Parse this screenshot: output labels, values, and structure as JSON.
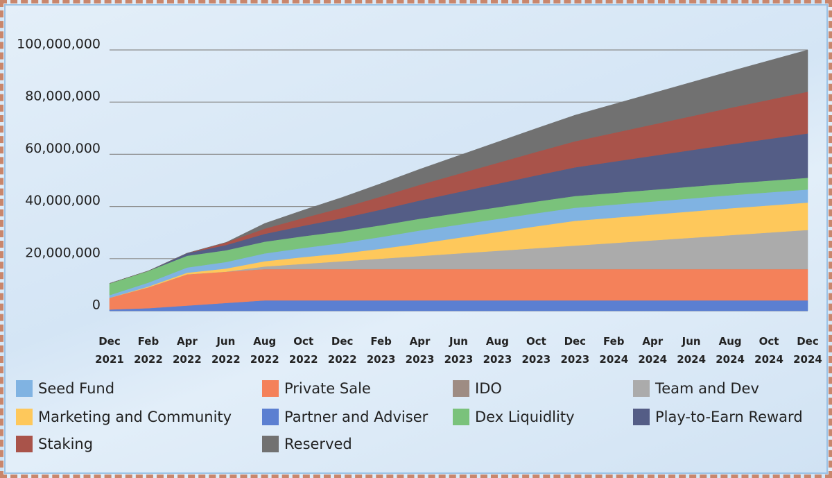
{
  "chart_data": {
    "type": "stacked-area",
    "x": [
      "Dec 2021",
      "Feb 2022",
      "Apr 2022",
      "Jun 2022",
      "Aug 2022",
      "Oct 2022",
      "Dec 2022",
      "Feb 2023",
      "Apr 2023",
      "Jun 2023",
      "Aug 2023",
      "Oct 2023",
      "Dec 2023",
      "Feb 2024",
      "Apr 2024",
      "Jun 2024",
      "Aug 2024",
      "Oct 2024",
      "Dec 2024"
    ],
    "ylim": [
      0,
      100000000
    ],
    "yticks": [
      0,
      {
        "value": 20000000,
        "label": "20,000,000"
      },
      {
        "value": 40000000,
        "label": "40,000,000"
      },
      {
        "value": 60000000,
        "label": "60,000,000"
      },
      {
        "value": 80000000,
        "label": "80,000,000"
      },
      {
        "value": 100000000,
        "label": "100,000,000"
      }
    ],
    "grid": true,
    "series": [
      {
        "name": "Seed Fund",
        "color": "#80b3e2",
        "values": [
          1000000,
          1500000,
          2000000,
          2500000,
          3000000,
          3500000,
          4000000,
          4500000,
          5000000,
          5000000,
          5000000,
          5000000,
          5000000,
          5000000,
          5000000,
          5000000,
          5000000,
          5000000,
          5000000
        ]
      },
      {
        "name": "Private Sale",
        "color": "#f4815a",
        "values": [
          4500000,
          8000000,
          12000000,
          12000000,
          12000000,
          12000000,
          12000000,
          12000000,
          12000000,
          12000000,
          12000000,
          12000000,
          12000000,
          12000000,
          12000000,
          12000000,
          12000000,
          12000000,
          12000000
        ]
      },
      {
        "name": "IDO",
        "color": "#9e8c83",
        "values": [
          0,
          0,
          0,
          0,
          0,
          0,
          0,
          0,
          0,
          0,
          0,
          0,
          0,
          0,
          0,
          0,
          0,
          0,
          0
        ]
      },
      {
        "name": "Team and Dev",
        "color": "#ababab",
        "values": [
          0,
          0,
          0,
          0,
          1000000,
          2000000,
          3000000,
          4000000,
          5000000,
          6000000,
          7000000,
          8000000,
          9000000,
          10000000,
          11000000,
          12000000,
          13000000,
          14000000,
          15000000
        ]
      },
      {
        "name": "Marketing and Community",
        "color": "#fec85b",
        "values": [
          0,
          300000,
          600000,
          1200000,
          2000000,
          2600000,
          3000000,
          3800000,
          4800000,
          6000000,
          7200000,
          8400000,
          9500000,
          9700000,
          9900000,
          10100000,
          10300000,
          10400000,
          10500000
        ]
      },
      {
        "name": "Partner and Adviser",
        "color": "#5b7fd1",
        "values": [
          500000,
          1000000,
          2000000,
          3000000,
          4000000,
          4000000,
          4000000,
          4000000,
          4000000,
          4000000,
          4000000,
          4000000,
          4000000,
          4000000,
          4000000,
          4000000,
          4000000,
          4000000,
          4000000
        ]
      },
      {
        "name": "Dex Liquidlity",
        "color": "#7ac27b",
        "values": [
          4500000,
          4500000,
          4500000,
          4500000,
          4500000,
          4500000,
          4500000,
          4500000,
          4500000,
          4500000,
          4500000,
          4500000,
          4500000,
          4500000,
          4500000,
          4500000,
          4500000,
          4500000,
          4500000
        ]
      },
      {
        "name": "Play-to-Earn Reward",
        "color": "#545d86",
        "values": [
          0,
          0,
          1000000,
          2000000,
          3000000,
          4000000,
          5000000,
          6000000,
          7000000,
          8000000,
          9000000,
          10000000,
          11000000,
          12000000,
          13000000,
          14000000,
          15000000,
          16000000,
          17000000
        ]
      },
      {
        "name": "Staking",
        "color": "#a9534a",
        "values": [
          0,
          0,
          0,
          1000000,
          2000000,
          3000000,
          4000000,
          5000000,
          6000000,
          7000000,
          8000000,
          9000000,
          10000000,
          11000000,
          12000000,
          13000000,
          14000000,
          15000000,
          16000000
        ]
      },
      {
        "name": "Reserved",
        "color": "#717171",
        "values": [
          0,
          0,
          0,
          0,
          2000000,
          3000000,
          4000000,
          5000000,
          6000000,
          7000000,
          8000000,
          9000000,
          10000000,
          11000000,
          12000000,
          13000000,
          14000000,
          15000000,
          16000000
        ]
      }
    ]
  }
}
